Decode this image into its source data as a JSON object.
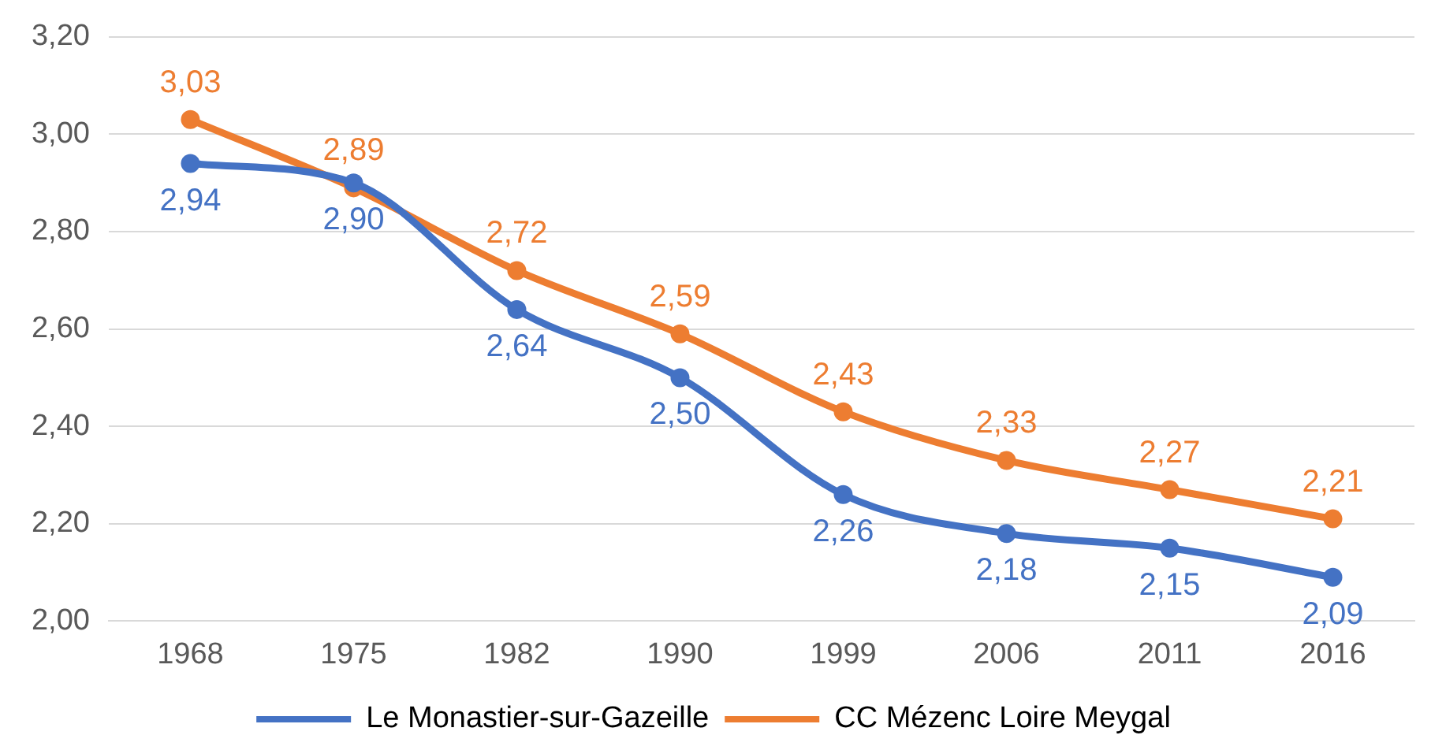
{
  "chart_data": {
    "type": "line",
    "categories": [
      "1968",
      "1975",
      "1982",
      "1990",
      "1999",
      "2006",
      "2011",
      "2016"
    ],
    "series": [
      {
        "name": "Le Monastier-sur-Gazeille",
        "color": "#4472c4",
        "values": [
          2.94,
          2.9,
          2.64,
          2.5,
          2.26,
          2.18,
          2.15,
          2.09
        ],
        "value_labels": [
          "2,94",
          "2,90",
          "2,64",
          "2,50",
          "2,26",
          "2,18",
          "2,15",
          "2,09"
        ]
      },
      {
        "name": "CC Mézenc Loire Meygal",
        "color": "#ed7d31",
        "values": [
          3.03,
          2.89,
          2.72,
          2.59,
          2.43,
          2.33,
          2.27,
          2.21
        ],
        "value_labels": [
          "3,03",
          "2,89",
          "2,72",
          "2,59",
          "2,43",
          "2,33",
          "2,27",
          "2,21"
        ]
      }
    ],
    "ylim": [
      2.0,
      3.2
    ],
    "yticks": [
      {
        "value": 2.0,
        "label": "2,00"
      },
      {
        "value": 2.2,
        "label": "2,20"
      },
      {
        "value": 2.4,
        "label": "2,40"
      },
      {
        "value": 2.6,
        "label": "2,60"
      },
      {
        "value": 2.8,
        "label": "2,80"
      },
      {
        "value": 3.0,
        "label": "3,00"
      },
      {
        "value": 3.2,
        "label": "3,20"
      }
    ],
    "grid": "y",
    "legend": "bottom",
    "marker": "circle",
    "line_style": "solid"
  }
}
